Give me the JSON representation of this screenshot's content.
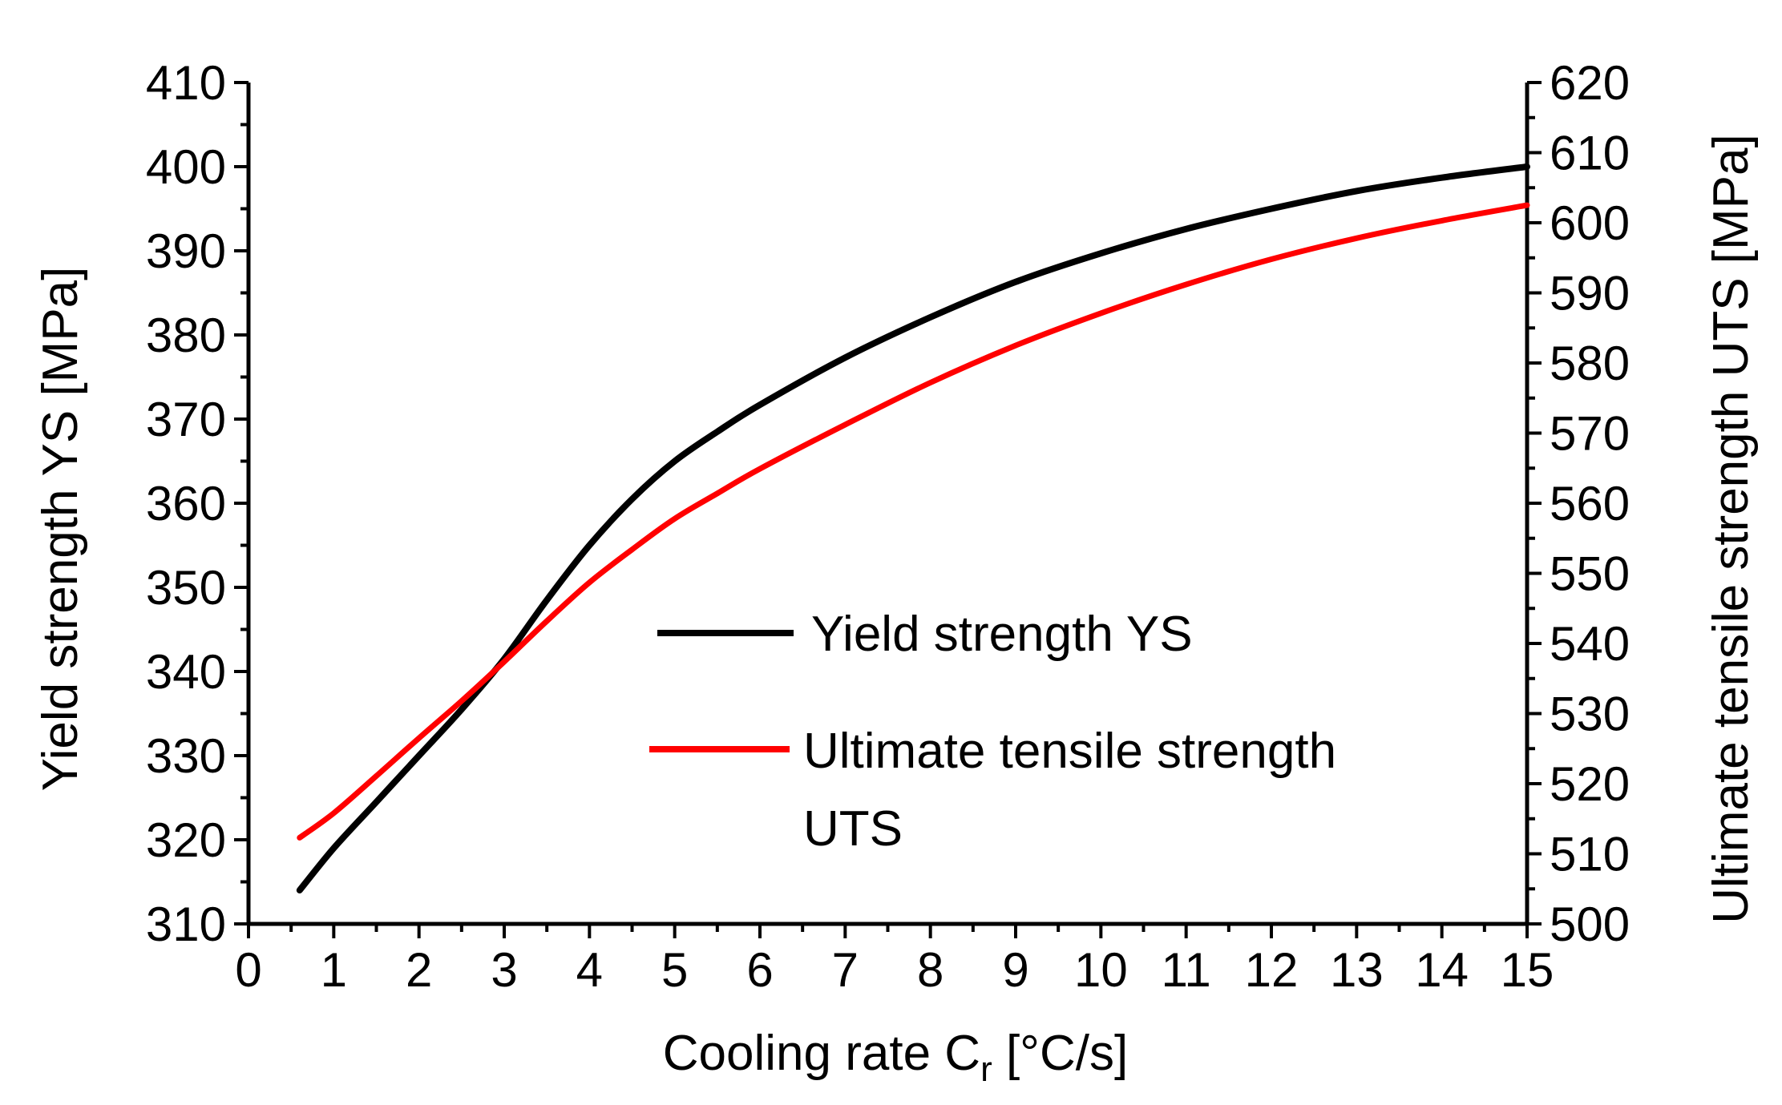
{
  "chart_data": {
    "type": "line",
    "title": "",
    "xlabel": "Cooling rate C",
    "xlabel_subscript": "r",
    "xlabel_unit": " [°C/s]",
    "ylabel_left": "Yield strength YS [MPa]",
    "ylabel_right": "Ultimate tensile strength UTS [MPa]",
    "xlim": [
      0,
      15
    ],
    "ylim_left": [
      310,
      410
    ],
    "ylim_right": [
      500,
      620
    ],
    "x_ticks": [
      "0",
      "1",
      "2",
      "3",
      "4",
      "5",
      "6",
      "7",
      "8",
      "9",
      "10",
      "11",
      "12",
      "13",
      "14",
      "15"
    ],
    "y_left_ticks": [
      "310",
      "320",
      "330",
      "340",
      "350",
      "360",
      "370",
      "380",
      "390",
      "400",
      "410"
    ],
    "y_right_ticks": [
      "500",
      "510",
      "520",
      "530",
      "540",
      "550",
      "560",
      "570",
      "580",
      "590",
      "600",
      "610",
      "620"
    ],
    "grid": false,
    "legend_position": "center-right",
    "series": [
      {
        "name": "Yield strength YS",
        "axis": "left",
        "color": "#000000",
        "x": [
          0.6,
          1,
          1.5,
          2,
          2.5,
          3,
          3.5,
          4,
          4.5,
          5,
          5.5,
          6,
          7,
          8,
          9,
          10,
          11,
          12,
          13,
          14,
          15
        ],
        "y": [
          314,
          319,
          324.5,
          330,
          335.5,
          341.5,
          348.5,
          355,
          360.5,
          365,
          368.5,
          371.7,
          377.3,
          382.1,
          386.3,
          389.7,
          392.6,
          395,
          397.1,
          398.7,
          400
        ]
      },
      {
        "name": "Ultimate tensile strength",
        "name_line2": "UTS",
        "axis": "right",
        "color": "#ff0000",
        "x": [
          0.6,
          1,
          1.5,
          2,
          2.5,
          3,
          3.5,
          4,
          4.5,
          5,
          5.5,
          6,
          7,
          8,
          9,
          10,
          11,
          12,
          13,
          14,
          15
        ],
        "y": [
          512.3,
          515.8,
          521.1,
          526.5,
          531.8,
          537.4,
          543.2,
          548.7,
          553.4,
          557.8,
          561.4,
          564.9,
          571.2,
          577.2,
          582.5,
          587.1,
          591.2,
          594.8,
          597.8,
          600.3,
          602.5
        ]
      }
    ]
  }
}
